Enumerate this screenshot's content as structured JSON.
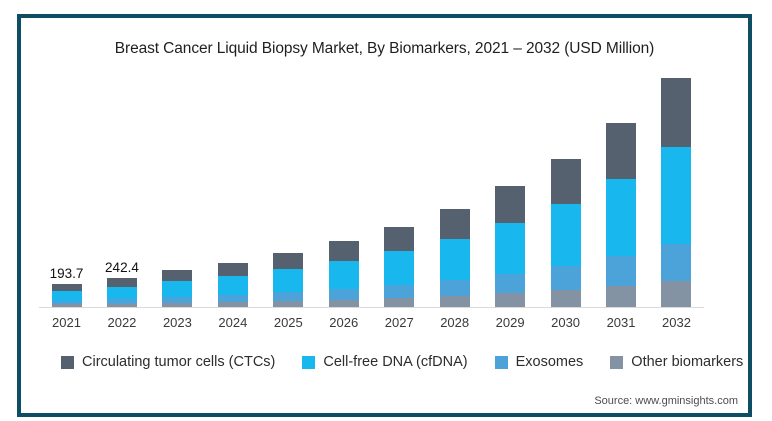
{
  "title": "Breast Cancer Liquid Biopsy Market, By Biomarkers, 2021 – 2032 (USD Million)",
  "source": "Source: www.gminsights.com",
  "colors": {
    "frame_border": "#0e4d63",
    "axis_line": "#d9d9d9",
    "ctc": "#55616f",
    "cfdna": "#18b7ee",
    "exosomes": "#4ba3da",
    "other": "#8493a4"
  },
  "chart_data": {
    "type": "bar",
    "stacked": true,
    "title": "Breast Cancer Liquid Biopsy Market, By Biomarkers, 2021 – 2032 (USD Million)",
    "unit": "USD Million",
    "grid": false,
    "legend_position": "bottom",
    "ylim": [
      0,
      2100
    ],
    "categories": [
      "2021",
      "2022",
      "2023",
      "2024",
      "2025",
      "2026",
      "2027",
      "2028",
      "2029",
      "2030",
      "2031",
      "2032"
    ],
    "series": [
      {
        "name": "Circulating tumor cells (CTCs)",
        "color": "#55616f",
        "values": [
          58,
          73,
          93,
          112,
          137,
          167,
          203,
          248,
          307,
          376,
          468,
          582
        ]
      },
      {
        "name": "Cell-free DNA (cfDNA)",
        "color": "#18b7ee",
        "values": [
          82,
          102,
          130,
          156,
          191,
          233,
          283,
          346,
          427,
          523,
          651,
          809
        ]
      },
      {
        "name": "Exosomes",
        "color": "#4ba3da",
        "values": [
          32,
          40,
          51,
          61,
          75,
          91,
          110,
          134,
          165,
          202,
          251,
          312
        ]
      },
      {
        "name": "Other biomarkers",
        "color": "#8493a4",
        "values": [
          22,
          27,
          35,
          42,
          52,
          63,
          77,
          94,
          116,
          142,
          177,
          220
        ]
      }
    ],
    "stack_order_bottom_to_top": [
      "Other biomarkers",
      "Exosomes",
      "Cell-free DNA (cfDNA)",
      "Circulating tumor cells (CTCs)"
    ],
    "totals_estimated": [
      193.7,
      242.4,
      309,
      371,
      455,
      554,
      673,
      822,
      1015,
      1243,
      1547,
      1923
    ],
    "data_labels": [
      {
        "category": "2021",
        "text": "193.7"
      },
      {
        "category": "2022",
        "text": "242.4"
      }
    ]
  },
  "legend": {
    "items": [
      {
        "label": "Circulating tumor cells (CTCs)",
        "color": "#55616f"
      },
      {
        "label": "Cell-free DNA (cfDNA)",
        "color": "#18b7ee"
      },
      {
        "label": "Exosomes",
        "color": "#4ba3da"
      },
      {
        "label": "Other biomarkers",
        "color": "#8493a4"
      }
    ]
  }
}
